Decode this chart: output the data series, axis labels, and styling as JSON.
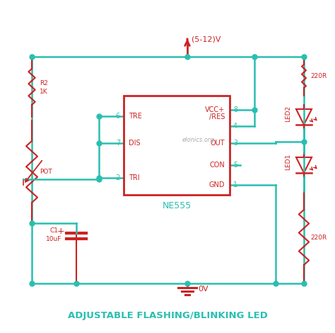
{
  "bg_color": "#ffffff",
  "wire_color": "#2abfb0",
  "component_color": "#cc2222",
  "text_color_teal": "#2abfb0",
  "text_color_red": "#cc2222",
  "title": "ADJUSTABLE FLASHING/BLINKING LED",
  "ic_label": "NE555",
  "watermark": "elonics.org",
  "supply_label": "(5-12)V",
  "gnd_label": "0V"
}
